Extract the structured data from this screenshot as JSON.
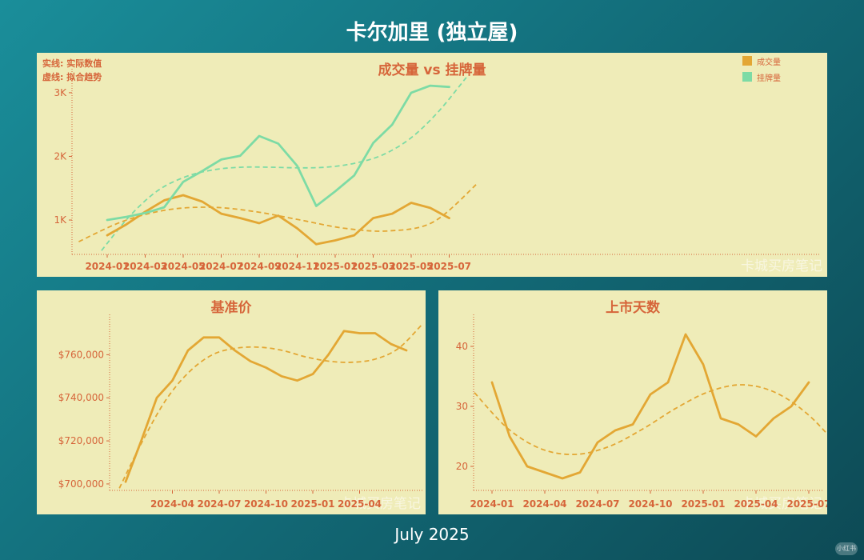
{
  "page": {
    "title": "卡尔加里 (独立屋)",
    "footer_date": "July 2025",
    "watermark": "卡城买房笔记",
    "badge": "小红书"
  },
  "colors": {
    "sales": "#e3a734",
    "listings": "#7ddba5",
    "axis": "#d6653a",
    "panel_bg": "#efecb8",
    "title_text": "#d6653a"
  },
  "chart_data": [
    {
      "id": "volume",
      "type": "line",
      "title": "成交量 vs 挂牌量",
      "notes": [
        "实线: 实际数值",
        "虚线: 拟合趋势"
      ],
      "legend_position": "top-right",
      "x": [
        "2024-01",
        "2024-02",
        "2024-03",
        "2024-04",
        "2024-05",
        "2024-06",
        "2024-07",
        "2024-08",
        "2024-09",
        "2024-10",
        "2024-11",
        "2024-12",
        "2025-01",
        "2025-02",
        "2025-03",
        "2025-04",
        "2025-05",
        "2025-06",
        "2025-07"
      ],
      "x_ticks": [
        "2024-01",
        "2024-03",
        "2024-05",
        "2024-07",
        "2024-09",
        "2024-11",
        "2025-01",
        "2025-03",
        "2025-05",
        "2025-07"
      ],
      "y_ticks": [
        1000,
        2000,
        3000
      ],
      "y_tick_labels": [
        "1K",
        "2K",
        "3K"
      ],
      "ylim": [
        460,
        3250
      ],
      "series": [
        {
          "name": "成交量",
          "color": "#e3a734",
          "values": [
            760,
            930,
            1130,
            1310,
            1390,
            1290,
            1100,
            1030,
            950,
            1070,
            870,
            620,
            680,
            760,
            1030,
            1100,
            1270,
            1190,
            1030
          ]
        },
        {
          "name": "挂牌量",
          "color": "#7ddba5",
          "values": [
            1000,
            1050,
            1110,
            1200,
            1600,
            1770,
            1950,
            2010,
            2320,
            2200,
            1850,
            1220,
            1450,
            1700,
            2210,
            2500,
            3000,
            3110,
            3090
          ]
        }
      ],
      "trend_series": [
        {
          "name": "成交量",
          "color": "#e3a734",
          "x_range": [
            -1.5,
            19.5
          ],
          "values": [
            660,
            980,
            1160,
            1200,
            1130,
            1000,
            870,
            830,
            970,
            1580
          ]
        },
        {
          "name": "挂牌量",
          "color": "#7ddba5",
          "x_range": [
            -0.3,
            18.9
          ],
          "values": [
            520,
            1060,
            1460,
            1680,
            1790,
            1830,
            1830,
            1820,
            1830,
            1890,
            2020,
            2280,
            2700,
            3240
          ]
        }
      ]
    },
    {
      "id": "price",
      "type": "line",
      "title": "基准价",
      "x": [
        "2024-01",
        "2024-02",
        "2024-03",
        "2024-04",
        "2024-05",
        "2024-06",
        "2024-07",
        "2024-08",
        "2024-09",
        "2024-10",
        "2024-11",
        "2024-12",
        "2025-01",
        "2025-02",
        "2025-03",
        "2025-04",
        "2025-05",
        "2025-06",
        "2025-07"
      ],
      "x_ticks": [
        "2024-04",
        "2024-07",
        "2024-10",
        "2025-01",
        "2025-04"
      ],
      "y_ticks": [
        700000,
        720000,
        740000,
        760000
      ],
      "y_tick_labels": [
        "$700,000",
        "$720,000",
        "$740,000",
        "$760,000"
      ],
      "ylim": [
        697000,
        775000
      ],
      "series": [
        {
          "name": "基准价",
          "color": "#e3a734",
          "values": [
            701000,
            720000,
            740000,
            748000,
            762000,
            768000,
            768000,
            762000,
            757000,
            754000,
            750000,
            748000,
            751000,
            760000,
            771000,
            770000,
            770000,
            765000,
            762000
          ]
        }
      ],
      "trend_series": [
        {
          "name": "基准价",
          "color": "#e3a734",
          "x_range": [
            -0.4,
            19.0
          ],
          "values": [
            698000,
            720000,
            739000,
            752000,
            760000,
            763000,
            763500,
            762000,
            759000,
            757000,
            756500,
            758000,
            763000,
            774000
          ]
        }
      ]
    },
    {
      "id": "dom",
      "type": "line",
      "title": "上市天数",
      "x": [
        "2024-01",
        "2024-02",
        "2024-03",
        "2024-04",
        "2024-05",
        "2024-06",
        "2024-07",
        "2024-08",
        "2024-09",
        "2024-10",
        "2024-11",
        "2024-12",
        "2025-01",
        "2025-02",
        "2025-03",
        "2025-04",
        "2025-05",
        "2025-06",
        "2025-07"
      ],
      "x_ticks": [
        "2024-01",
        "2024-04",
        "2024-07",
        "2024-10",
        "2025-01",
        "2025-04",
        "2025-07"
      ],
      "y_ticks": [
        20,
        30,
        40
      ],
      "y_tick_labels": [
        "20",
        "30",
        "40"
      ],
      "ylim": [
        16,
        44
      ],
      "series": [
        {
          "name": "上市天数",
          "color": "#e3a734",
          "values": [
            34,
            25,
            20,
            19,
            18,
            19,
            24,
            26,
            27,
            32,
            34,
            42,
            37,
            28,
            27,
            25,
            28,
            30,
            34
          ]
        }
      ],
      "trend_series": [
        {
          "name": "上市天数",
          "color": "#e3a734",
          "x_range": [
            -1.0,
            20.0
          ],
          "values": [
            32.3,
            26.3,
            22.9,
            22.0,
            23.3,
            26.2,
            29.7,
            32.5,
            33.6,
            32.2,
            28.3,
            22.2
          ]
        }
      ]
    }
  ]
}
